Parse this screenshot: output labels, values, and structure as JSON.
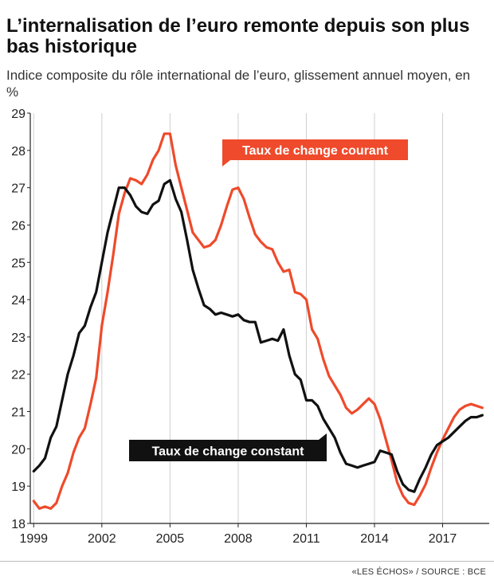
{
  "header": {
    "title": "L’internalisation de l’euro remonte depuis son plus bas historique",
    "subtitle": "Indice composite du rôle international de l’euro, glissement annuel moyen, en %"
  },
  "footer": {
    "source": "«LES ÉCHOS» / SOURCE : BCE"
  },
  "colors": {
    "courant": "#ef4a2b",
    "constant": "#111111",
    "grid": "#cfcfcf",
    "axis": "#222222"
  },
  "chart_data": {
    "type": "line",
    "title": "L’internalisation de l’euro remonte depuis son plus bas historique",
    "subtitle": "Indice composite du rôle international de l’euro, glissement annuel moyen, en %",
    "xlabel": "",
    "ylabel": "",
    "xlim": [
      1998.85,
      2019.05
    ],
    "ylim": [
      18,
      29
    ],
    "x_ticks": [
      1999,
      2002,
      2005,
      2008,
      2011,
      2014,
      2017
    ],
    "y_ticks": [
      18,
      19,
      20,
      21,
      22,
      23,
      24,
      25,
      26,
      27,
      28,
      29
    ],
    "grid": "vertical",
    "series": [
      {
        "name": "Taux de change courant",
        "color": "#ef4a2b",
        "x": [
          1999.0,
          1999.25,
          1999.5,
          1999.75,
          2000.0,
          2000.25,
          2000.5,
          2000.75,
          2001.0,
          2001.25,
          2001.5,
          2001.75,
          2002.0,
          2002.25,
          2002.5,
          2002.75,
          2003.0,
          2003.25,
          2003.5,
          2003.75,
          2004.0,
          2004.25,
          2004.5,
          2004.75,
          2005.0,
          2005.25,
          2005.5,
          2005.75,
          2006.0,
          2006.25,
          2006.5,
          2006.75,
          2007.0,
          2007.25,
          2007.5,
          2007.75,
          2008.0,
          2008.25,
          2008.5,
          2008.75,
          2009.0,
          2009.25,
          2009.5,
          2009.75,
          2010.0,
          2010.25,
          2010.5,
          2010.75,
          2011.0,
          2011.25,
          2011.5,
          2011.75,
          2012.0,
          2012.25,
          2012.5,
          2012.75,
          2013.0,
          2013.25,
          2013.5,
          2013.75,
          2014.0,
          2014.25,
          2014.5,
          2014.75,
          2015.0,
          2015.25,
          2015.5,
          2015.75,
          2016.0,
          2016.25,
          2016.5,
          2016.75,
          2017.0,
          2017.25,
          2017.5,
          2017.75,
          2018.0,
          2018.25,
          2018.5,
          2018.75
        ],
        "values": [
          18.6,
          18.4,
          18.45,
          18.4,
          18.55,
          19.0,
          19.35,
          19.9,
          20.3,
          20.55,
          21.2,
          21.9,
          23.3,
          24.2,
          25.2,
          26.3,
          26.85,
          27.25,
          27.2,
          27.1,
          27.35,
          27.75,
          28.0,
          28.45,
          28.45,
          27.6,
          27.0,
          26.4,
          25.8,
          25.6,
          25.4,
          25.45,
          25.6,
          26.0,
          26.5,
          26.95,
          27.0,
          26.7,
          26.2,
          25.75,
          25.55,
          25.4,
          25.35,
          25.0,
          24.75,
          24.8,
          24.2,
          24.15,
          24.0,
          23.2,
          22.95,
          22.4,
          21.95,
          21.7,
          21.45,
          21.1,
          20.95,
          21.05,
          21.2,
          21.35,
          21.2,
          20.8,
          20.25,
          19.7,
          19.1,
          18.75,
          18.55,
          18.5,
          18.75,
          19.05,
          19.5,
          19.9,
          20.25,
          20.55,
          20.85,
          21.05,
          21.15,
          21.2,
          21.15,
          21.1
        ]
      },
      {
        "name": "Taux de change constant",
        "color": "#111111",
        "x": [
          1999.0,
          1999.25,
          1999.5,
          1999.75,
          2000.0,
          2000.25,
          2000.5,
          2000.75,
          2001.0,
          2001.25,
          2001.5,
          2001.75,
          2002.0,
          2002.25,
          2002.5,
          2002.75,
          2003.0,
          2003.25,
          2003.5,
          2003.75,
          2004.0,
          2004.25,
          2004.5,
          2004.75,
          2005.0,
          2005.25,
          2005.5,
          2005.75,
          2006.0,
          2006.25,
          2006.5,
          2006.75,
          2007.0,
          2007.25,
          2007.5,
          2007.75,
          2008.0,
          2008.25,
          2008.5,
          2008.75,
          2009.0,
          2009.25,
          2009.5,
          2009.75,
          2010.0,
          2010.25,
          2010.5,
          2010.75,
          2011.0,
          2011.25,
          2011.5,
          2011.75,
          2012.0,
          2012.25,
          2012.5,
          2012.75,
          2013.0,
          2013.25,
          2013.5,
          2013.75,
          2014.0,
          2014.25,
          2014.5,
          2014.75,
          2015.0,
          2015.25,
          2015.5,
          2015.75,
          2016.0,
          2016.25,
          2016.5,
          2016.75,
          2017.0,
          2017.25,
          2017.5,
          2017.75,
          2018.0,
          2018.25,
          2018.5,
          2018.75
        ],
        "values": [
          19.4,
          19.55,
          19.75,
          20.3,
          20.6,
          21.3,
          22.0,
          22.5,
          23.1,
          23.3,
          23.8,
          24.2,
          25.0,
          25.8,
          26.4,
          27.0,
          27.0,
          26.8,
          26.5,
          26.35,
          26.3,
          26.55,
          26.65,
          27.1,
          27.2,
          26.7,
          26.35,
          25.6,
          24.8,
          24.3,
          23.85,
          23.75,
          23.6,
          23.65,
          23.6,
          23.55,
          23.6,
          23.45,
          23.4,
          23.4,
          22.85,
          22.9,
          22.95,
          22.9,
          23.2,
          22.5,
          22.0,
          21.85,
          21.3,
          21.3,
          21.15,
          20.8,
          20.55,
          20.3,
          19.9,
          19.6,
          19.55,
          19.5,
          19.55,
          19.6,
          19.65,
          19.95,
          19.9,
          19.85,
          19.4,
          19.05,
          18.9,
          18.85,
          19.2,
          19.5,
          19.85,
          20.1,
          20.2,
          20.3,
          20.45,
          20.6,
          20.75,
          20.85,
          20.85,
          20.9
        ]
      }
    ],
    "annotations": [
      {
        "text": "Taux de change courant",
        "series": "Taux de change courant"
      },
      {
        "text": "Taux de change constant",
        "series": "Taux de change constant"
      }
    ]
  }
}
